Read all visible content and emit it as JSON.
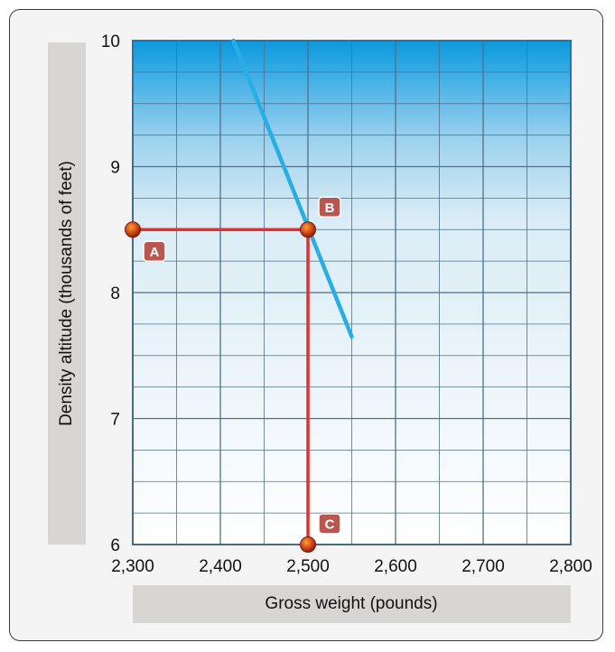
{
  "chart_data": {
    "type": "line",
    "xlabel": "Gross weight (pounds)",
    "ylabel": "Density altitude (thousands of feet)",
    "xlim": [
      2300,
      2800
    ],
    "ylim": [
      6,
      10
    ],
    "x_ticks": [
      "2,300",
      "2,400",
      "2,500",
      "2,600",
      "2,700",
      "2,800"
    ],
    "y_ticks": [
      "6",
      "7",
      "8",
      "9",
      "10"
    ],
    "grid": true,
    "series": [
      {
        "values_xy": [
          [
            2415,
            10.0
          ],
          [
            2550,
            7.65
          ]
        ],
        "color": "#29aee3"
      }
    ],
    "reference_lines": [
      {
        "from": [
          2300,
          8.5
        ],
        "to": [
          2500,
          8.5
        ],
        "color": "#e0302f"
      },
      {
        "from": [
          2500,
          8.5
        ],
        "to": [
          2500,
          6.0
        ],
        "color": "#e0302f"
      }
    ],
    "points": [
      {
        "label": "A",
        "x": 2300,
        "y": 8.5
      },
      {
        "label": "B",
        "x": 2500,
        "y": 8.5
      },
      {
        "label": "C",
        "x": 2500,
        "y": 6.0
      }
    ]
  }
}
